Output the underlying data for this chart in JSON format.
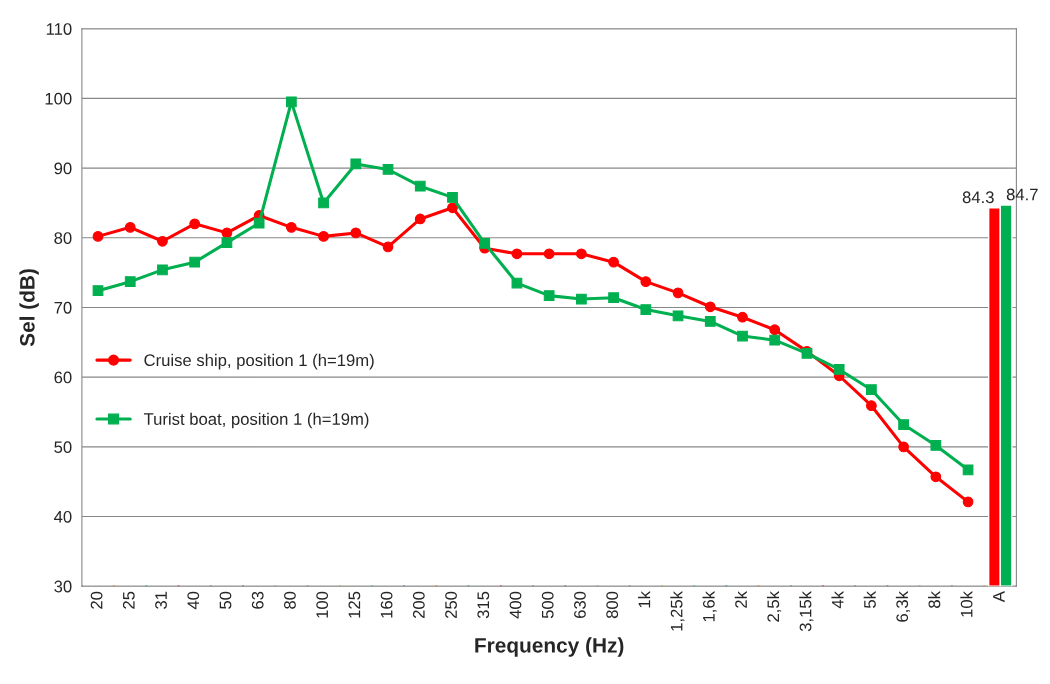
{
  "chart_data": {
    "type": "line",
    "xlabel": "Frequency (Hz)",
    "ylabel": "Sel (dB)",
    "categories": [
      "20",
      "25",
      "31",
      "40",
      "50",
      "63",
      "80",
      "100",
      "125",
      "160",
      "200",
      "250",
      "315",
      "400",
      "500",
      "630",
      "800",
      "1k",
      "1,25k",
      "1,6k",
      "2k",
      "2,5k",
      "3,15k",
      "4k",
      "5k",
      "6,3k",
      "8k",
      "10k",
      "A"
    ],
    "series": [
      {
        "name": "Cruise ship, position 1 (h=19m)",
        "marker": "circle",
        "color": "#ff0000",
        "values": [
          80.2,
          81.5,
          79.5,
          82.0,
          80.7,
          83.2,
          81.5,
          80.2,
          80.7,
          78.7,
          82.7,
          84.3,
          78.5,
          77.7,
          77.7,
          77.7,
          76.5,
          73.7,
          72.1,
          70.1,
          68.6,
          66.8,
          63.7,
          60.2,
          55.9,
          50.0,
          45.7,
          42.1,
          null
        ]
      },
      {
        "name": "Turist boat, position 1 (h=19m)",
        "marker": "square",
        "color": "#00b050",
        "values": [
          72.4,
          73.7,
          75.4,
          76.5,
          79.3,
          82.1,
          99.5,
          85.0,
          90.6,
          89.8,
          87.4,
          85.8,
          79.2,
          73.5,
          71.7,
          71.2,
          71.4,
          69.7,
          68.8,
          68.0,
          65.9,
          65.3,
          63.4,
          61.1,
          58.2,
          53.2,
          50.2,
          46.7,
          null
        ]
      },
      {
        "type": "bar",
        "color": "#ff0000",
        "values": [
          null,
          null,
          null,
          null,
          null,
          null,
          null,
          null,
          null,
          null,
          null,
          null,
          null,
          null,
          null,
          null,
          null,
          null,
          null,
          null,
          null,
          null,
          null,
          null,
          null,
          null,
          null,
          null,
          84.3
        ],
        "value_labels": [
          null,
          null,
          null,
          null,
          null,
          null,
          null,
          null,
          null,
          null,
          null,
          null,
          null,
          null,
          null,
          null,
          null,
          null,
          null,
          null,
          null,
          null,
          null,
          null,
          null,
          null,
          null,
          null,
          "84.3"
        ]
      },
      {
        "type": "bar",
        "color": "#00b050",
        "values": [
          null,
          null,
          null,
          null,
          null,
          null,
          null,
          null,
          null,
          null,
          null,
          null,
          null,
          null,
          null,
          null,
          null,
          null,
          null,
          null,
          null,
          null,
          null,
          null,
          null,
          null,
          null,
          null,
          84.7
        ],
        "value_labels": [
          null,
          null,
          null,
          null,
          null,
          null,
          null,
          null,
          null,
          null,
          null,
          null,
          null,
          null,
          null,
          null,
          null,
          null,
          null,
          null,
          null,
          null,
          null,
          null,
          null,
          null,
          null,
          null,
          "84.7"
        ]
      }
    ],
    "ylim": [
      30,
      110
    ],
    "yticks": [
      30,
      40,
      50,
      60,
      70,
      80,
      90,
      100,
      110
    ],
    "grid": "y",
    "legend": "center left"
  }
}
